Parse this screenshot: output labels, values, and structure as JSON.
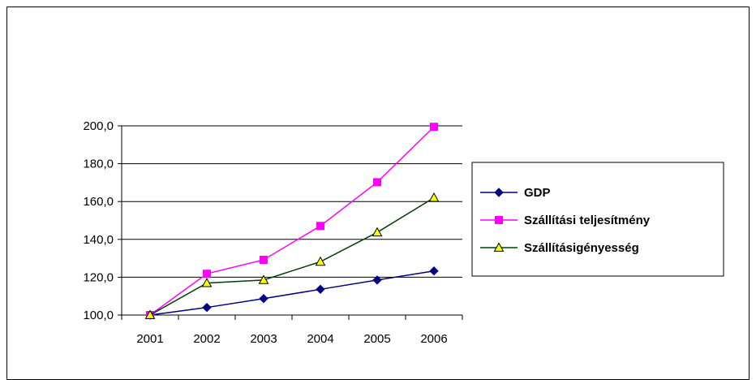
{
  "chart_data": {
    "type": "line",
    "title": "",
    "xlabel": "",
    "ylabel": "",
    "x": [
      "2001",
      "2002",
      "2003",
      "2004",
      "2005",
      "2006"
    ],
    "ylim": [
      100,
      200
    ],
    "yticks": [
      "100,0",
      "120,0",
      "140,0",
      "160,0",
      "180,0",
      "200,0"
    ],
    "grid": true,
    "legend_position": "right",
    "series": [
      {
        "name": "GDP",
        "values": [
          100,
          104,
          108.7,
          113.6,
          118.5,
          123.3
        ],
        "color": "#000080",
        "marker": "diamond"
      },
      {
        "name": "Szállítási teljesítmény",
        "values": [
          100,
          121.8,
          129.2,
          147.1,
          170.2,
          199.5
        ],
        "color": "#ff00ff",
        "marker": "square"
      },
      {
        "name": "Szállításigényesség",
        "values": [
          100,
          116.9,
          118.5,
          128.2,
          143.7,
          162
        ],
        "color": "#004000",
        "marker": "triangle",
        "marker_fill": "#ffff00"
      }
    ]
  }
}
